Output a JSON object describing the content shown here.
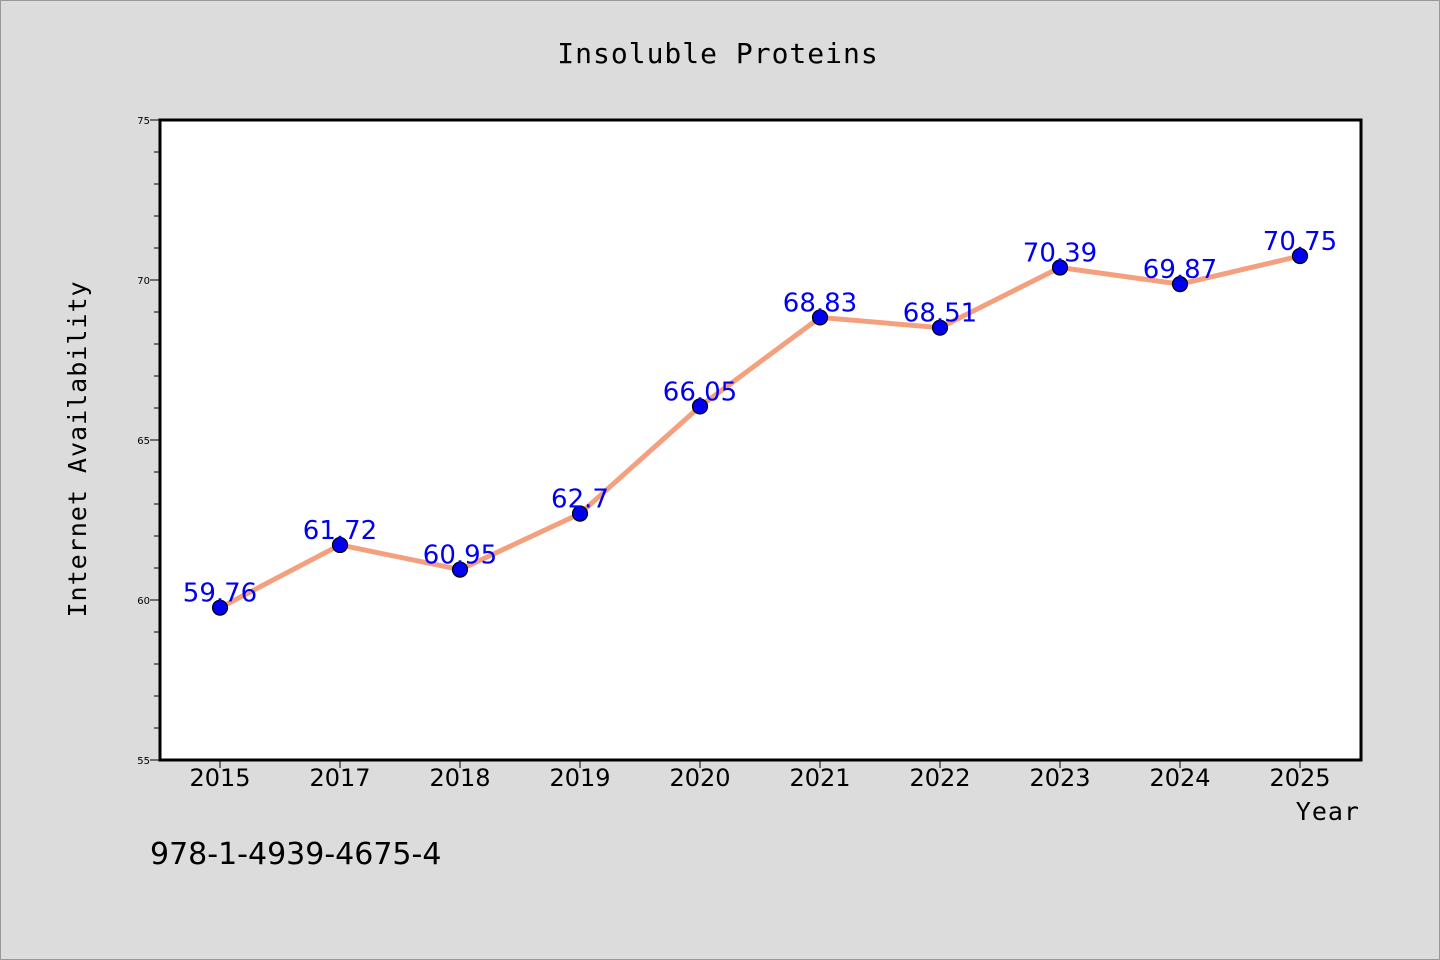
{
  "chart_data": {
    "type": "line",
    "title": "Insoluble Proteins",
    "xlabel": "Year",
    "ylabel": "Internet Availability",
    "categories": [
      "2015",
      "2017",
      "2018",
      "2019",
      "2020",
      "2021",
      "2022",
      "2023",
      "2024",
      "2025"
    ],
    "values": [
      59.76,
      61.72,
      60.95,
      62.7,
      66.05,
      68.83,
      68.51,
      70.39,
      69.87,
      70.75
    ],
    "data_labels": [
      "59.76",
      "61.72",
      "60.95",
      "62.7",
      "66.05",
      "68.83",
      "68.51",
      "70.39",
      "69.87",
      "70.75"
    ],
    "ylim": [
      55,
      75
    ],
    "yticks": [
      55,
      60,
      65,
      70,
      75
    ],
    "grid": false,
    "legend": "none",
    "colors": {
      "line": "#f4a07e",
      "marker": "#0000ee",
      "label": "#0000ee",
      "background": "#dcdcdc",
      "plot_background": "#ffffff"
    }
  },
  "footer": {
    "isbn": "978-1-4939-4675-4"
  }
}
